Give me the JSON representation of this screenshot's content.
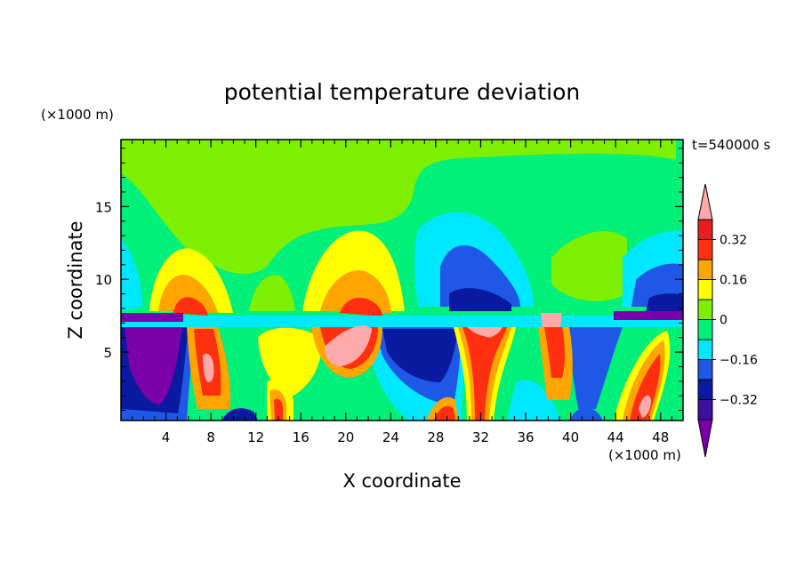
{
  "chart_data": {
    "type": "heatmap",
    "title": "potential temperature deviation",
    "xlabel": "X coordinate",
    "ylabel": "Z coordinate",
    "x_unit": "(×1000 m)",
    "y_unit": "(×1000 m)",
    "time_label": "t=540000 s",
    "xlim": [
      0,
      50
    ],
    "ylim": [
      0.3,
      19.6
    ],
    "x_ticks": [
      4,
      8,
      12,
      16,
      20,
      24,
      28,
      32,
      36,
      40,
      44,
      48
    ],
    "y_ticks": [
      5,
      10,
      15
    ],
    "legend": {
      "placement": "right",
      "tick_labels": [
        "0.32",
        "0.16",
        "0",
        "−0.16",
        "−0.32"
      ],
      "tick_values": [
        0.32,
        0.16,
        0,
        -0.16,
        -0.32
      ],
      "levels": [
        -0.4,
        -0.32,
        -0.24,
        -0.16,
        -0.08,
        0,
        0.08,
        0.16,
        0.24,
        0.32,
        0.4
      ],
      "colors": [
        "#7a00aa",
        "#3b0fa0",
        "#0a1aa0",
        "#1f58e6",
        "#00e8ff",
        "#00f07a",
        "#7cf000",
        "#ffff00",
        "#ffa500",
        "#ff3010",
        "#e61e1e",
        "#ffaaaa"
      ]
    },
    "background_color": "#00f07a"
  }
}
